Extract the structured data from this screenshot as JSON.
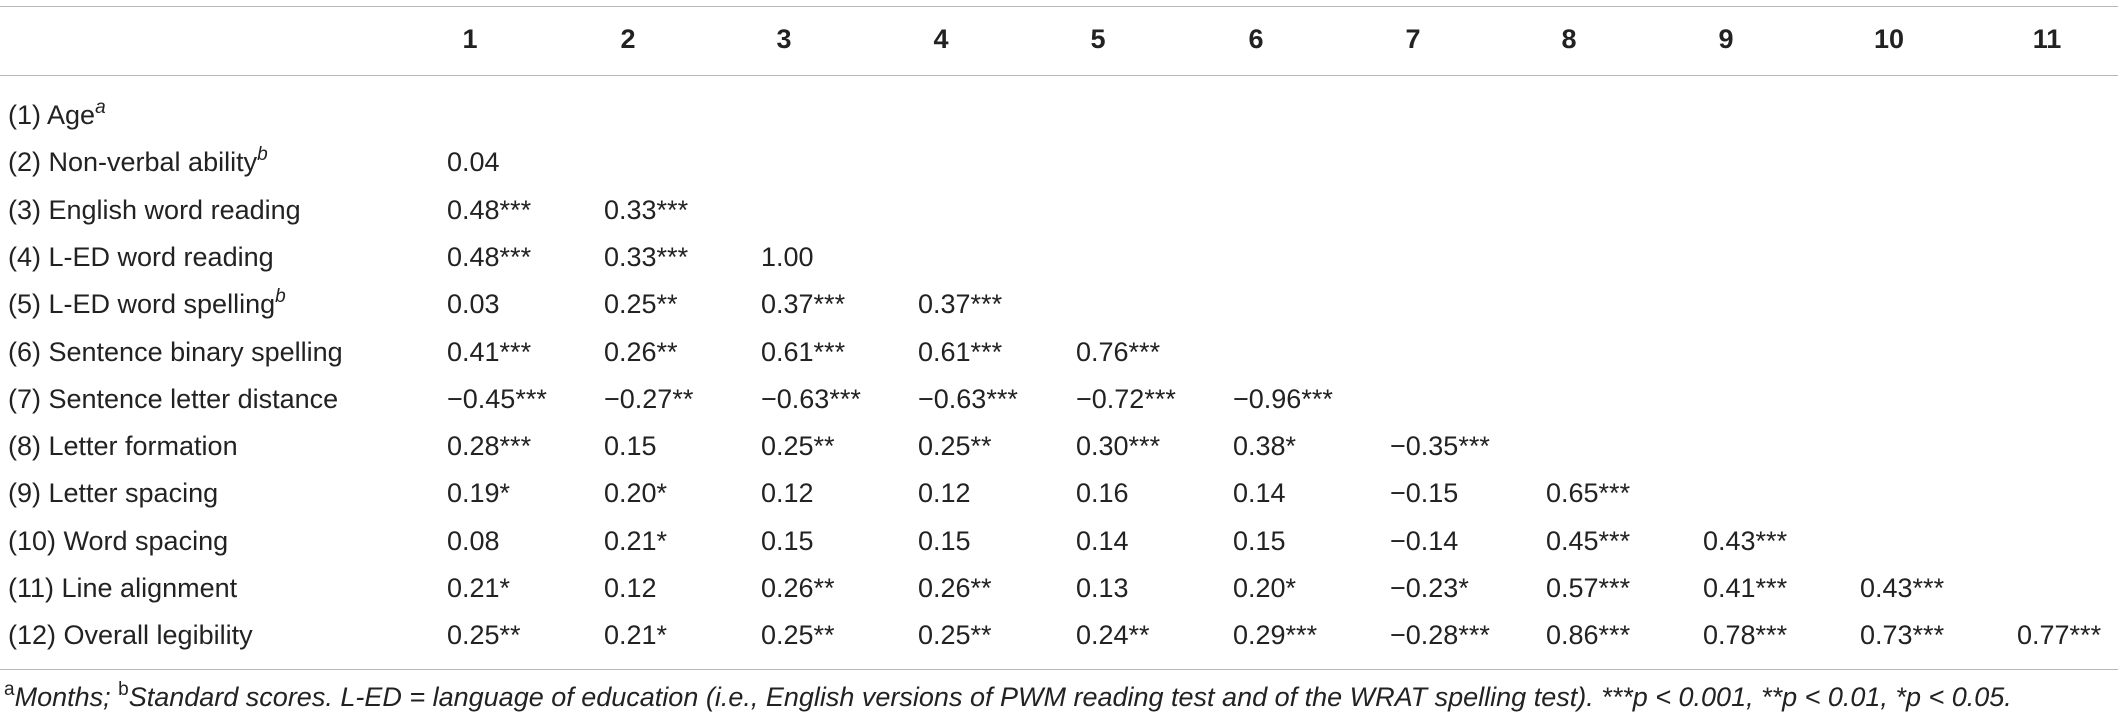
{
  "table": {
    "columns": [
      "1",
      "2",
      "3",
      "4",
      "5",
      "6",
      "7",
      "8",
      "9",
      "10",
      "11"
    ],
    "rows": [
      {
        "label": "(1) Age",
        "sup": "a",
        "values": []
      },
      {
        "label": "(2) Non-verbal ability",
        "sup": "b",
        "values": [
          "0.04"
        ]
      },
      {
        "label": "(3) English word reading",
        "sup": "",
        "values": [
          "0.48***",
          "0.33***"
        ]
      },
      {
        "label": "(4) L-ED word reading",
        "sup": "",
        "values": [
          "0.48***",
          "0.33***",
          "1.00"
        ]
      },
      {
        "label": "(5) L-ED word spelling",
        "sup": "b",
        "values": [
          "0.03",
          "0.25**",
          "0.37***",
          "0.37***"
        ]
      },
      {
        "label": "(6) Sentence binary spelling",
        "sup": "",
        "values": [
          "0.41***",
          "0.26**",
          "0.61***",
          "0.61***",
          "0.76***"
        ]
      },
      {
        "label": "(7) Sentence letter distance",
        "sup": "",
        "values": [
          "−0.45***",
          "−0.27**",
          "−0.63***",
          "−0.63***",
          "−0.72***",
          "−0.96***"
        ]
      },
      {
        "label": "(8) Letter formation",
        "sup": "",
        "values": [
          "0.28***",
          "0.15",
          "0.25**",
          "0.25**",
          "0.30***",
          "0.38*",
          "−0.35***"
        ]
      },
      {
        "label": "(9) Letter spacing",
        "sup": "",
        "values": [
          "0.19*",
          "0.20*",
          "0.12",
          "0.12",
          "0.16",
          "0.14",
          "−0.15",
          "0.65***"
        ]
      },
      {
        "label": "(10) Word spacing",
        "sup": "",
        "values": [
          "0.08",
          "0.21*",
          "0.15",
          "0.15",
          "0.14",
          "0.15",
          "−0.14",
          "0.45***",
          "0.43***"
        ]
      },
      {
        "label": "(11) Line alignment",
        "sup": "",
        "values": [
          "0.21*",
          "0.12",
          "0.26**",
          "0.26**",
          "0.13",
          "0.20*",
          "−0.23*",
          "0.57***",
          "0.41***",
          "0.43***"
        ]
      },
      {
        "label": "(12) Overall legibility",
        "sup": "",
        "values": [
          "0.25**",
          "0.21*",
          "0.25**",
          "0.25**",
          "0.24**",
          "0.29***",
          "−0.28***",
          "0.86***",
          "0.78***",
          "0.73***",
          "0.77***"
        ]
      }
    ]
  },
  "footnote": {
    "a_mark": "a",
    "a_text": "Months;",
    "b_mark": "b",
    "b_text": "Standard scores. L-ED = language of education (i.e., English versions of PWM reading test and of the WRAT spelling test). ***p < 0.001, **p < 0.01, *p < 0.05."
  }
}
